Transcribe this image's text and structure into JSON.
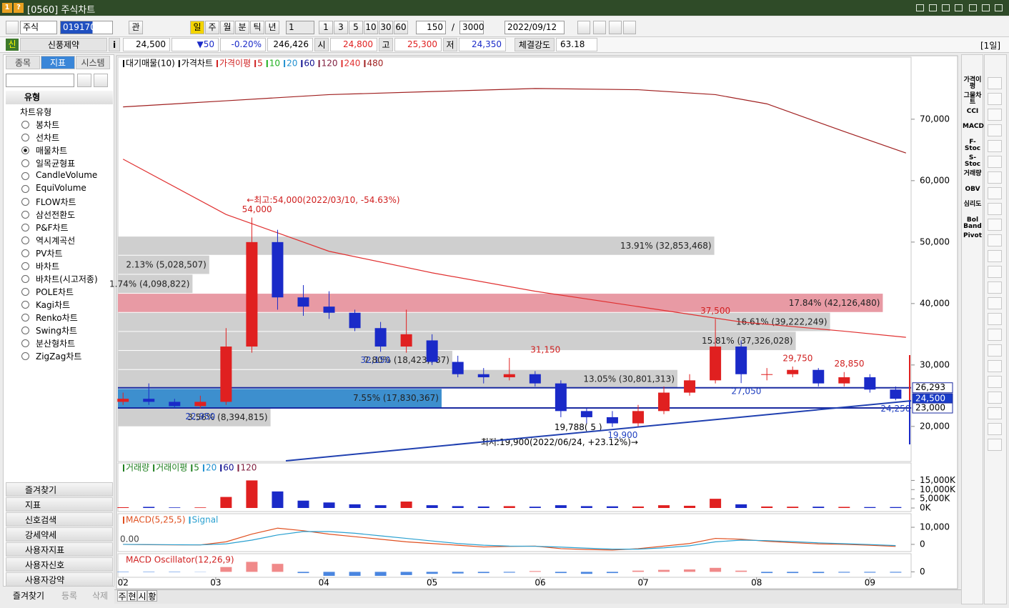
{
  "window": {
    "title": "[0560] 주식차트",
    "badges": [
      "1",
      "?"
    ]
  },
  "toolbar": {
    "market": "주식",
    "code": "019170",
    "view_button": "관",
    "periods": [
      "일",
      "주",
      "월",
      "분",
      "틱",
      "년"
    ],
    "active_period": 0,
    "unit": "1",
    "intervals": [
      "1",
      "3",
      "5",
      "10",
      "30",
      "60"
    ],
    "count": "150",
    "separator": "/",
    "max_count": "3000",
    "date": "2022/09/12"
  },
  "quote": {
    "badge": "신",
    "name": "신풍제약",
    "info": "i",
    "price": "24,500",
    "change": "▼50",
    "change_pct": "-0.20%",
    "volume": "246,426",
    "open_label": "시",
    "open": "24,800",
    "high_label": "고",
    "high": "25,300",
    "low_label": "저",
    "low": "24,350",
    "strength_label": "체결강도",
    "strength": "63.18",
    "period": "[1일]"
  },
  "sidebar": {
    "tabs": [
      "종목",
      "지표",
      "시스템"
    ],
    "active_tab": 1,
    "section": "유형",
    "group": "차트유형",
    "items": [
      "봉차트",
      "선차트",
      "매물차트",
      "일목균형표",
      "CandleVolume",
      "EquiVolume",
      "FLOW차트",
      "삼선전환도",
      "P&F차트",
      "역시계곡선",
      "PV차트",
      "바차트",
      "바차트(시고저종)",
      "POLE차트",
      "Kagi차트",
      "Renko차트",
      "Swing차트",
      "분산형차트",
      "ZigZag차트"
    ],
    "selected": 2,
    "folders": [
      "즐겨찾기",
      "지표",
      "신호검색",
      "강세약세",
      "사용자지표",
      "사용자신호",
      "사용자강약"
    ],
    "footer": [
      "즐겨찾기",
      "등록",
      "삭제"
    ]
  },
  "right_tools": [
    "가격이평",
    "그물차트",
    "CCI",
    "MACD",
    "F-Stoc",
    "S-Stoc",
    "거래량",
    "OBV",
    "심리도",
    "Bol Band",
    "Pivot"
  ],
  "bottom_tabs": [
    "주",
    "현",
    "시",
    "황"
  ],
  "price_chart": {
    "type": "candlestick",
    "legend": [
      {
        "name": "대기매물(10)",
        "color": "#000000"
      },
      {
        "name": "가격차트",
        "color": "#000000"
      },
      {
        "name": "가격이평",
        "color": "#d02020"
      },
      {
        "name": "5",
        "color": "#d02020"
      },
      {
        "name": "10",
        "color": "#20b020"
      },
      {
        "name": "20",
        "color": "#2090d0"
      },
      {
        "name": "60",
        "color": "#101090"
      },
      {
        "name": "120",
        "color": "#802040"
      },
      {
        "name": "240",
        "color": "#e03030"
      },
      {
        "name": "480",
        "color": "#a02020"
      }
    ],
    "xlim": [
      -1,
      153
    ],
    "xticks": [
      {
        "value": 0,
        "label": "02"
      },
      {
        "value": 18,
        "label": "03"
      },
      {
        "value": 39,
        "label": "04"
      },
      {
        "value": 60,
        "label": "05"
      },
      {
        "value": 81,
        "label": "06"
      },
      {
        "value": 101,
        "label": "07"
      },
      {
        "value": 123,
        "label": "08"
      },
      {
        "value": 145,
        "label": "09"
      }
    ],
    "ylim": [
      14400,
      80100
    ],
    "yticks": [
      {
        "value": 20000,
        "label": "20,000"
      },
      {
        "value": 30000,
        "label": "30,000"
      },
      {
        "value": 40000,
        "label": "40,000"
      },
      {
        "value": 50000,
        "label": "50,000"
      },
      {
        "value": 60000,
        "label": "60,000"
      },
      {
        "value": 70000,
        "label": "70,000"
      }
    ],
    "up_color": "#e02020",
    "down_color": "#1a2ac8",
    "candles": {
      "x": [
        0,
        5,
        10,
        15,
        20,
        25,
        30,
        35,
        40,
        45,
        50,
        55,
        60,
        65,
        70,
        75,
        80,
        85,
        90,
        95,
        100,
        105,
        110,
        115,
        120,
        125,
        130,
        135,
        140,
        145,
        150
      ],
      "open": [
        24000,
        24500,
        24000,
        23300,
        24000,
        33000,
        50000,
        41000,
        39500,
        38500,
        36000,
        33000,
        34000,
        30500,
        28500,
        28000,
        28500,
        27000,
        22500,
        21500,
        20500,
        22500,
        25500,
        27500,
        33000,
        28500,
        28500,
        29200,
        27000,
        28000,
        26000
      ],
      "close": [
        24500,
        24000,
        23300,
        24000,
        33000,
        50000,
        41000,
        39500,
        38500,
        36000,
        33000,
        35000,
        30500,
        28500,
        28000,
        28500,
        27000,
        22500,
        21500,
        20500,
        22500,
        25500,
        27500,
        33000,
        28500,
        28500,
        29200,
        27000,
        28000,
        26000,
        24500
      ],
      "high": [
        25500,
        27000,
        24500,
        25000,
        36000,
        54000,
        52000,
        43000,
        42000,
        39000,
        37000,
        39000,
        35000,
        31500,
        29500,
        31150,
        29000,
        27500,
        23000,
        22500,
        23500,
        26500,
        28500,
        37500,
        34000,
        29500,
        29750,
        29500,
        28850,
        28500,
        26500
      ],
      "low": [
        23500,
        23500,
        22950,
        22950,
        23500,
        32000,
        39000,
        38000,
        37500,
        35500,
        32150,
        32000,
        30000,
        28000,
        27000,
        27500,
        26500,
        21500,
        20500,
        19900,
        20000,
        22000,
        25000,
        27000,
        27050,
        27500,
        28000,
        26500,
        26500,
        25500,
        24250
      ]
    },
    "moving_averages": [
      {
        "color": "#a02020",
        "x": [
          0,
          20,
          40,
          60,
          80,
          100,
          115,
          125,
          140,
          152
        ],
        "values": [
          72000,
          73000,
          74000,
          74500,
          75000,
          74800,
          74000,
          72500,
          68000,
          64500
        ]
      },
      {
        "color": "#e03030",
        "x": [
          0,
          20,
          40,
          60,
          80,
          100,
          120,
          140,
          152
        ],
        "values": [
          63500,
          54500,
          48500,
          45000,
          42000,
          39500,
          37000,
          35500,
          34500
        ]
      }
    ],
    "volume_profile": [
      {
        "low": 19900,
        "high": 23000,
        "value": 3.56,
        "value_label": "3.56% (8,394,815)",
        "color": "#cfcfcf"
      },
      {
        "low": 23000,
        "high": 26100,
        "value": 7.55,
        "value_label": "7.55% (17,830,367)",
        "color": "#3d8fce"
      },
      {
        "low": 26100,
        "high": 29200,
        "value": 13.05,
        "value_label": "13.05% (30,801,313)",
        "color": "#cfcfcf"
      },
      {
        "low": 29200,
        "high": 32300,
        "value": 7.8,
        "value_label": "7.80% (18,423,787)",
        "color": "#cfcfcf"
      },
      {
        "low": 32300,
        "high": 35400,
        "value": 15.81,
        "value_label": "15.81% (37,326,028)",
        "color": "#cfcfcf"
      },
      {
        "low": 35400,
        "high": 38500,
        "value": 16.61,
        "value_label": "16.61% (39,222,249)",
        "color": "#cfcfcf"
      },
      {
        "low": 38500,
        "high": 41600,
        "value": 17.84,
        "value_label": "17.84% (42,126,480)",
        "color": "#e89aa4"
      },
      {
        "low": 41600,
        "high": 44700,
        "value": 1.74,
        "value_label": "1.74% (4,098,822)",
        "color": "#cfcfcf"
      },
      {
        "low": 44700,
        "high": 47800,
        "value": 2.13,
        "value_label": "2.13% (5,028,507)",
        "color": "#cfcfcf"
      },
      {
        "low": 47800,
        "high": 50900,
        "value": 13.91,
        "value_label": "13.91% (32,853,468)",
        "color": "#cfcfcf"
      }
    ],
    "annotations": [
      {
        "x": 26,
        "value": 54000,
        "label": "54,000",
        "color": "#d02020",
        "position": "above",
        "align": "middle"
      },
      {
        "x": 24,
        "value": 54000,
        "label": "←최고:54,000(2022/03/10, -54.63%)",
        "color": "#d02020",
        "position": "far-above",
        "align": "start"
      },
      {
        "x": 115,
        "value": 37500,
        "label": "37,500",
        "color": "#d02020",
        "position": "above",
        "align": "middle"
      },
      {
        "x": 82,
        "value": 31150,
        "label": "31,150",
        "color": "#d02020",
        "position": "above",
        "align": "middle"
      },
      {
        "x": 131,
        "value": 29750,
        "label": "29,750",
        "color": "#d02020",
        "position": "above",
        "align": "middle"
      },
      {
        "x": 141,
        "value": 28850,
        "label": "28,850",
        "color": "#d02020",
        "position": "above",
        "align": "middle"
      },
      {
        "x": 49,
        "value": 32150,
        "label": "32,150",
        "color": "#2040c0",
        "position": "below",
        "align": "middle"
      },
      {
        "x": 121,
        "value": 27050,
        "label": "27,050",
        "color": "#2040c0",
        "position": "below",
        "align": "middle"
      },
      {
        "x": 15,
        "value": 22950,
        "label": "22,950",
        "color": "#2040c0",
        "position": "below",
        "align": "middle"
      },
      {
        "x": 97,
        "value": 19900,
        "label": "19,900",
        "color": "#2040c0",
        "position": "below",
        "align": "middle"
      },
      {
        "x": 150,
        "value": 24250,
        "label": "24,250",
        "color": "#2040c0",
        "position": "below",
        "align": "middle"
      },
      {
        "x": 93,
        "value": 19788,
        "label": "19,788( 5 )",
        "color": "#000000",
        "position": "level",
        "align": "end"
      },
      {
        "x": 100,
        "value": 19900,
        "label": "최저:19,900(2022/06/24, +23.12%)→",
        "color": "#000000",
        "position": "far-below",
        "align": "end"
      }
    ],
    "price_markers": [
      {
        "value": 26293,
        "label": "26,293",
        "style": "outline"
      },
      {
        "value": 24500,
        "label": "24,500",
        "style": "filled"
      },
      {
        "value": 23000,
        "label": "23,000",
        "style": "outline"
      }
    ]
  },
  "volume_chart": {
    "type": "bar",
    "legend": [
      {
        "name": "거래량",
        "color": "#208020"
      },
      {
        "name": "거래이평",
        "color": "#208020"
      },
      {
        "name": "5",
        "color": "#208020"
      },
      {
        "name": "20",
        "color": "#2090d0"
      },
      {
        "name": "60",
        "color": "#101090"
      },
      {
        "name": "120",
        "color": "#802040"
      }
    ],
    "ylim": [
      0,
      21000
    ],
    "yticks": [
      {
        "value": 0,
        "label": "0K"
      },
      {
        "value": 5000,
        "label": "5,000K"
      },
      {
        "value": 10000,
        "label": "10,000K"
      },
      {
        "value": 15000,
        "label": "15,000K"
      }
    ],
    "values": [
      400,
      600,
      300,
      300,
      6000,
      15000,
      9000,
      4000,
      3000,
      2000,
      1500,
      3500,
      1500,
      1000,
      800,
      1000,
      700,
      1500,
      1000,
      900,
      800,
      1500,
      1200,
      5000,
      2000,
      800,
      700,
      700,
      600,
      500,
      500
    ]
  },
  "macd_chart": {
    "type": "line",
    "ylim": [
      -4200,
      16700
    ],
    "yticks": [
      0,
      {
        "value": 10000,
        "label": "10,000"
      }
    ],
    "zero_label": "0.00",
    "series": [
      {
        "name": "MACD(5,25,5)",
        "color": "#e05020",
        "values": [
          0,
          -200,
          -300,
          -300,
          1500,
          6000,
          9500,
          8000,
          6000,
          4500,
          3000,
          1500,
          500,
          -500,
          -1500,
          -1200,
          -1000,
          -2500,
          -3000,
          -3300,
          -2500,
          -1000,
          500,
          3500,
          3000,
          1800,
          1000,
          300,
          0,
          -500,
          -1200
        ]
      },
      {
        "name": "Signal",
        "color": "#2aa0d0",
        "values": [
          0,
          -100,
          -200,
          -300,
          300,
          2500,
          5500,
          7500,
          7500,
          6500,
          5000,
          3500,
          2000,
          500,
          -500,
          -1000,
          -1100,
          -1600,
          -2200,
          -2800,
          -2800,
          -2000,
          -800,
          1500,
          2500,
          2200,
          1600,
          900,
          400,
          -100,
          -700
        ]
      }
    ]
  },
  "oscillator_chart": {
    "type": "bar",
    "title": "MACD Oscillator(12,26,9)",
    "title_color": "#d02020",
    "ylim": [
      -1000,
      4000
    ],
    "yticks": [
      0
    ],
    "up_color": "#f08a8a",
    "down_color": "#4a86e0",
    "values": [
      -100,
      -100,
      -100,
      -50,
      1200,
      2500,
      2000,
      -300,
      -1000,
      -1000,
      -1000,
      -800,
      -500,
      -400,
      -300,
      -200,
      200,
      -300,
      -500,
      -300,
      300,
      500,
      600,
      1000,
      300,
      -300,
      -300,
      -300,
      -200,
      -200,
      -200
    ]
  }
}
